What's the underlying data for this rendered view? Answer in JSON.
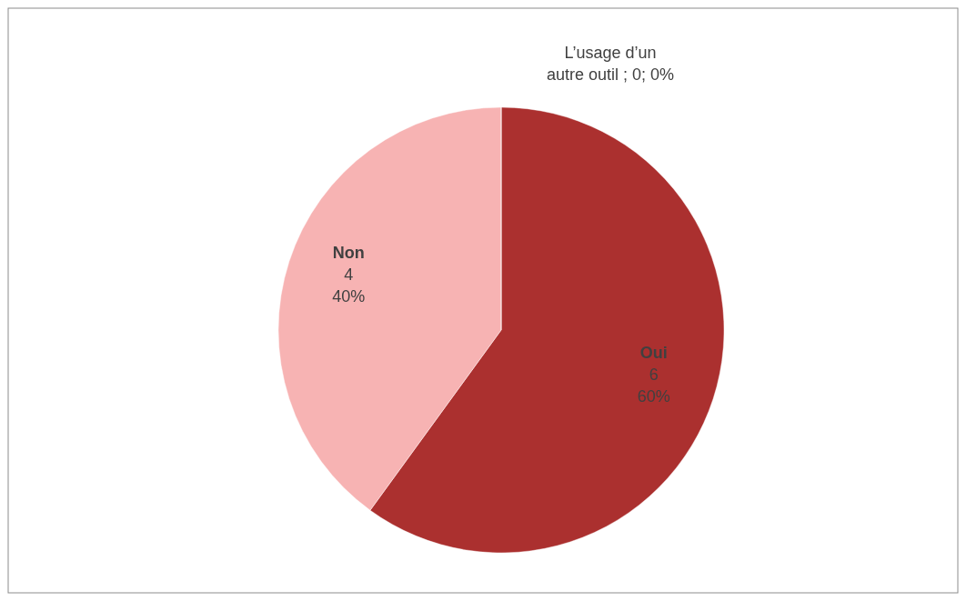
{
  "chart_data": {
    "type": "pie",
    "categories": [
      "Oui",
      "Non",
      "L’usage d’un autre outil"
    ],
    "values": [
      6,
      4,
      0
    ],
    "colors": [
      "#ab302f",
      "#f7b3b3",
      "#c0504d"
    ],
    "value_labels": [
      "6\n60%",
      "4\n40%",
      "; 0; 0%"
    ]
  }
}
